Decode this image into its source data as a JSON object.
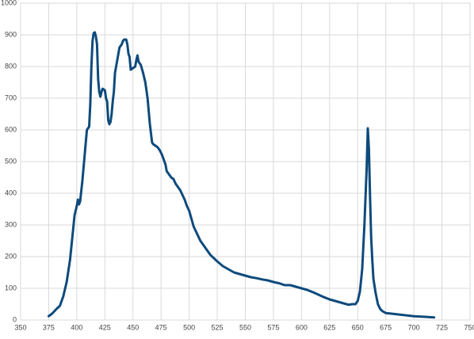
{
  "chart_data": {
    "type": "line",
    "x": [
      375,
      378,
      382,
      385,
      388,
      391,
      394,
      396,
      398,
      400,
      401,
      402,
      403,
      405,
      407,
      409,
      410,
      411,
      412,
      413,
      414,
      415,
      416,
      417,
      418,
      419,
      420,
      421,
      422,
      423,
      425,
      426,
      427,
      428,
      429,
      430,
      431,
      432,
      433,
      434,
      436,
      438,
      440,
      441,
      442,
      444,
      445,
      446,
      447,
      448,
      450,
      452,
      453,
      454,
      455,
      457,
      459,
      461,
      463,
      465,
      466,
      467,
      468,
      470,
      472,
      474,
      476,
      478,
      479,
      480,
      482,
      484,
      486,
      488,
      490,
      492,
      494,
      496,
      498,
      500,
      502,
      504,
      506,
      508,
      510,
      513,
      516,
      519,
      522,
      525,
      530,
      535,
      540,
      545,
      550,
      555,
      560,
      565,
      570,
      575,
      580,
      585,
      590,
      595,
      600,
      605,
      610,
      615,
      620,
      625,
      630,
      635,
      640,
      642,
      645,
      648,
      650,
      652,
      654,
      656,
      658,
      659,
      660,
      661,
      662,
      663,
      664,
      666,
      668,
      670,
      672,
      675,
      680,
      690,
      700,
      710,
      718
    ],
    "values": [
      12,
      20,
      35,
      45,
      75,
      120,
      190,
      260,
      330,
      360,
      380,
      365,
      375,
      440,
      520,
      600,
      605,
      610,
      680,
      800,
      880,
      905,
      908,
      895,
      870,
      760,
      720,
      705,
      720,
      730,
      725,
      700,
      690,
      630,
      618,
      625,
      650,
      690,
      720,
      780,
      820,
      860,
      870,
      880,
      885,
      885,
      870,
      840,
      830,
      790,
      795,
      800,
      820,
      835,
      815,
      805,
      780,
      750,
      700,
      620,
      590,
      560,
      555,
      550,
      545,
      535,
      520,
      500,
      490,
      470,
      460,
      450,
      445,
      430,
      420,
      410,
      395,
      380,
      360,
      345,
      320,
      295,
      280,
      265,
      250,
      235,
      220,
      205,
      195,
      185,
      170,
      160,
      150,
      145,
      140,
      135,
      132,
      128,
      125,
      120,
      116,
      110,
      110,
      105,
      100,
      95,
      88,
      80,
      72,
      65,
      60,
      55,
      50,
      48,
      50,
      50,
      60,
      90,
      160,
      300,
      480,
      605,
      540,
      390,
      260,
      190,
      130,
      85,
      50,
      35,
      28,
      22,
      20,
      16,
      12,
      10,
      8
    ],
    "color": "#0e4a7c",
    "xlim": [
      350,
      750
    ],
    "xticks": [
      350,
      375,
      400,
      425,
      450,
      475,
      500,
      525,
      550,
      575,
      600,
      625,
      650,
      675,
      700,
      725,
      750
    ],
    "ylim": [
      0,
      1000
    ],
    "yticks": [
      0,
      100,
      200,
      300,
      400,
      500,
      600,
      700,
      800,
      900,
      1000
    ],
    "grid": true
  }
}
